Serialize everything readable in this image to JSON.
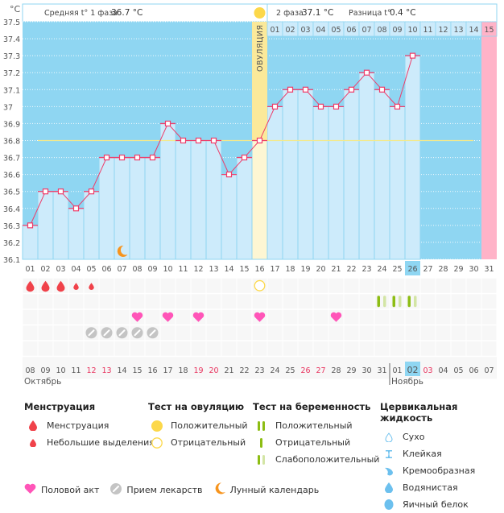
{
  "header": {
    "unit_label": "°C",
    "phase1_label": "Средняя t° 1 фаза",
    "phase1_value": "36.7 °C",
    "phase2_label": "2 фаза",
    "phase2_value": "37.1 °C",
    "diff_label": "Разница t°",
    "diff_value": "0.4 °C",
    "ovulation_label": "ОВУЛЯЦИЯ"
  },
  "colors": {
    "bg_blue": "#8fd6f2",
    "bar_light": "#cdebfb",
    "ovulation_yellow": "#fbe99a",
    "ovulation_light": "#fdf6d3",
    "next_period_pink": "#ffb3c8",
    "line_red": "#ee3d6a",
    "cover_line": "#f3e98a",
    "today_highlight": "#8fd6f2",
    "weekend_red": "#e8335e"
  },
  "chart_data": {
    "type": "line",
    "title": "",
    "xlabel": "",
    "ylabel": "°C",
    "ylim": [
      36.1,
      37.5
    ],
    "yticks": [
      "37.5",
      "37.4",
      "37.3",
      "37.2",
      "37.1",
      "37",
      "36.9",
      "36.8",
      "36.7",
      "36.6",
      "36.5",
      "36.4",
      "36.3",
      "36.2",
      "36.1"
    ],
    "cycle_days": [
      "01",
      "02",
      "03",
      "04",
      "05",
      "06",
      "07",
      "08",
      "09",
      "10",
      "11",
      "12",
      "13",
      "14",
      "15",
      "16",
      "17",
      "18",
      "19",
      "20",
      "21",
      "22",
      "23",
      "24",
      "25",
      "26",
      "27",
      "28",
      "29",
      "30",
      "31"
    ],
    "dpo_labels": [
      "01",
      "02",
      "03",
      "04",
      "05",
      "06",
      "07",
      "08",
      "09",
      "10",
      "11",
      "12",
      "13",
      "14",
      "15"
    ],
    "series": [
      {
        "name": "Базальная температура",
        "values": [
          36.3,
          36.5,
          36.5,
          36.4,
          36.5,
          36.7,
          36.7,
          36.7,
          36.7,
          36.9,
          36.8,
          36.8,
          36.8,
          36.6,
          36.7,
          36.8,
          37.0,
          37.1,
          37.1,
          37.0,
          37.0,
          37.1,
          37.2,
          37.1,
          37.0,
          37.3,
          null,
          null,
          null,
          null,
          null
        ]
      }
    ],
    "cover_line": 36.8,
    "ovulation_day": 16,
    "today_day": 26,
    "next_period_day": 31,
    "calendar_dates": [
      "08",
      "09",
      "10",
      "11",
      "12",
      "13",
      "14",
      "15",
      "16",
      "17",
      "18",
      "19",
      "20",
      "21",
      "22",
      "23",
      "24",
      "25",
      "26",
      "27",
      "28",
      "29",
      "30",
      "31",
      "01",
      "02",
      "03",
      "04",
      "05",
      "06",
      "07"
    ],
    "weekend_indices": [
      4,
      5,
      11,
      12,
      18,
      19,
      26
    ],
    "month_labels": [
      {
        "label": "Октябрь",
        "start_index": 0
      },
      {
        "label": "Ноябрь",
        "start_index": 24
      }
    ],
    "events": {
      "menstruation": [
        {
          "day": 1,
          "size": "large"
        },
        {
          "day": 2,
          "size": "large"
        },
        {
          "day": 3,
          "size": "large"
        },
        {
          "day": 4,
          "size": "small"
        },
        {
          "day": 5,
          "size": "small"
        }
      ],
      "ovulation_test": [
        {
          "day": 16,
          "result": "negative"
        }
      ],
      "pregnancy_test": [
        {
          "day": 24,
          "result": "weak-positive"
        },
        {
          "day": 25,
          "result": "weak-positive"
        },
        {
          "day": 26,
          "result": "weak-positive"
        }
      ],
      "intercourse": [
        8,
        10,
        12,
        16,
        21
      ],
      "medication": [
        5,
        6,
        7,
        8,
        9
      ],
      "lunar": [
        7
      ]
    }
  },
  "legend": {
    "menstruation": {
      "title": "Менструация",
      "items": [
        "Менструация",
        "Небольшие выделения"
      ]
    },
    "ovulation_test": {
      "title": "Тест на овуляцию",
      "items": [
        "Положительный",
        "Отрицательный"
      ]
    },
    "pregnancy_test": {
      "title": "Тест на беременность",
      "items": [
        "Положительный",
        "Отрицательный",
        "Слабоположительный"
      ]
    },
    "cervical": {
      "title": "Цервикальная жидкость",
      "items": [
        "Сухо",
        "Клейкая",
        "Кремообразная",
        "Водянистая",
        "Яичный белок"
      ]
    },
    "bottom": [
      "Половой акт",
      "Прием лекарств",
      "Лунный календарь"
    ]
  }
}
